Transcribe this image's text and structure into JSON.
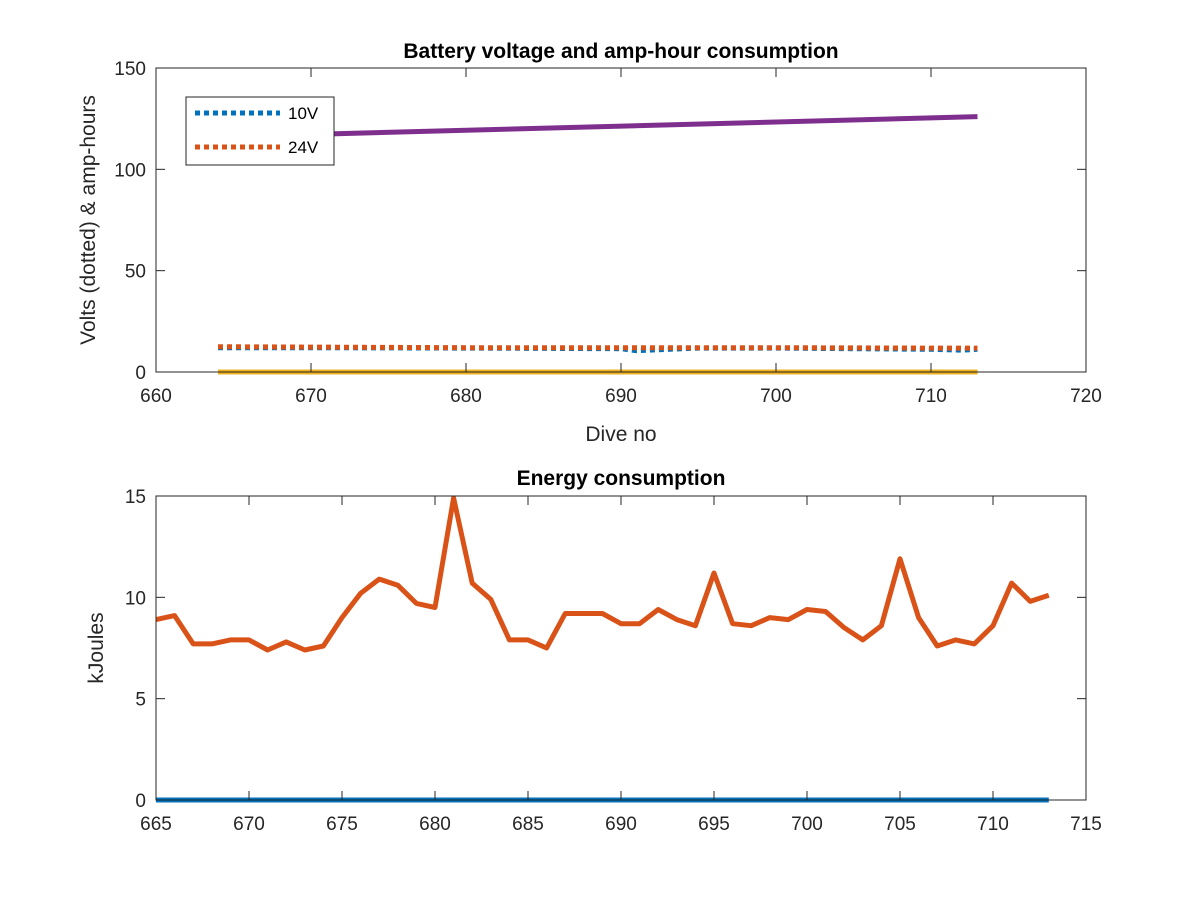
{
  "chart_data": [
    {
      "type": "line",
      "title": "Battery voltage and amp-hour consumption",
      "xlabel": "Dive no",
      "ylabel": "Volts (dotted) & amp-hours",
      "xlim": [
        660,
        720
      ],
      "ylim": [
        0,
        150
      ],
      "xticks": [
        660,
        670,
        680,
        690,
        700,
        710,
        720
      ],
      "yticks": [
        0,
        50,
        100,
        150
      ],
      "grid": false,
      "legend_position": "top-left",
      "series": [
        {
          "name": "10V",
          "style": "dotted",
          "color": "#0072BD",
          "x": [
            664,
            670,
            680,
            690,
            691,
            695,
            700,
            705,
            710,
            712,
            713
          ],
          "y": [
            12,
            12,
            11.8,
            11.5,
            10.5,
            11.8,
            11.8,
            11.5,
            11.2,
            10.8,
            11.2
          ]
        },
        {
          "name": "24V",
          "style": "dotted",
          "color": "#D95319",
          "x": [
            664,
            670,
            680,
            690,
            700,
            710,
            713
          ],
          "y": [
            12.5,
            12.3,
            12,
            12,
            12,
            11.8,
            11.8
          ]
        },
        {
          "style": "solid",
          "color": "#EDB120",
          "x": [
            664,
            713
          ],
          "y": [
            0,
            0
          ]
        },
        {
          "style": "solid",
          "color": "#7E2F8E",
          "x": [
            664,
            713
          ],
          "y": [
            116,
            126
          ]
        }
      ]
    },
    {
      "type": "line",
      "title": "Energy consumption",
      "xlabel": "",
      "ylabel": "kJoules",
      "xlim": [
        665,
        715
      ],
      "ylim": [
        0,
        15
      ],
      "xticks": [
        665,
        670,
        675,
        680,
        685,
        690,
        695,
        700,
        705,
        710,
        715
      ],
      "yticks": [
        0,
        5,
        10,
        15
      ],
      "grid": false,
      "series": [
        {
          "style": "solid",
          "color": "#0072BD",
          "x": [
            665,
            713
          ],
          "y": [
            0,
            0
          ]
        },
        {
          "style": "solid",
          "color": "#D95319",
          "x": [
            665,
            666,
            667,
            668,
            669,
            670,
            671,
            672,
            673,
            674,
            675,
            676,
            677,
            678,
            679,
            680,
            681,
            682,
            683,
            684,
            685,
            686,
            687,
            688,
            689,
            690,
            691,
            692,
            693,
            694,
            695,
            696,
            697,
            698,
            699,
            700,
            701,
            702,
            703,
            704,
            705,
            706,
            707,
            708,
            709,
            710,
            711,
            712,
            713
          ],
          "y": [
            8.9,
            9.1,
            7.7,
            7.7,
            7.9,
            7.9,
            7.4,
            7.8,
            7.4,
            7.6,
            9.0,
            10.2,
            10.9,
            10.6,
            9.7,
            9.5,
            14.9,
            10.7,
            9.9,
            7.9,
            7.9,
            7.5,
            9.2,
            9.2,
            9.2,
            8.7,
            8.7,
            9.4,
            8.9,
            8.6,
            11.2,
            8.7,
            8.6,
            9.0,
            8.9,
            9.4,
            9.3,
            8.5,
            7.9,
            8.6,
            11.9,
            9.0,
            7.6,
            7.9,
            7.7,
            8.6,
            10.7,
            9.8,
            10.1
          ]
        }
      ]
    }
  ]
}
